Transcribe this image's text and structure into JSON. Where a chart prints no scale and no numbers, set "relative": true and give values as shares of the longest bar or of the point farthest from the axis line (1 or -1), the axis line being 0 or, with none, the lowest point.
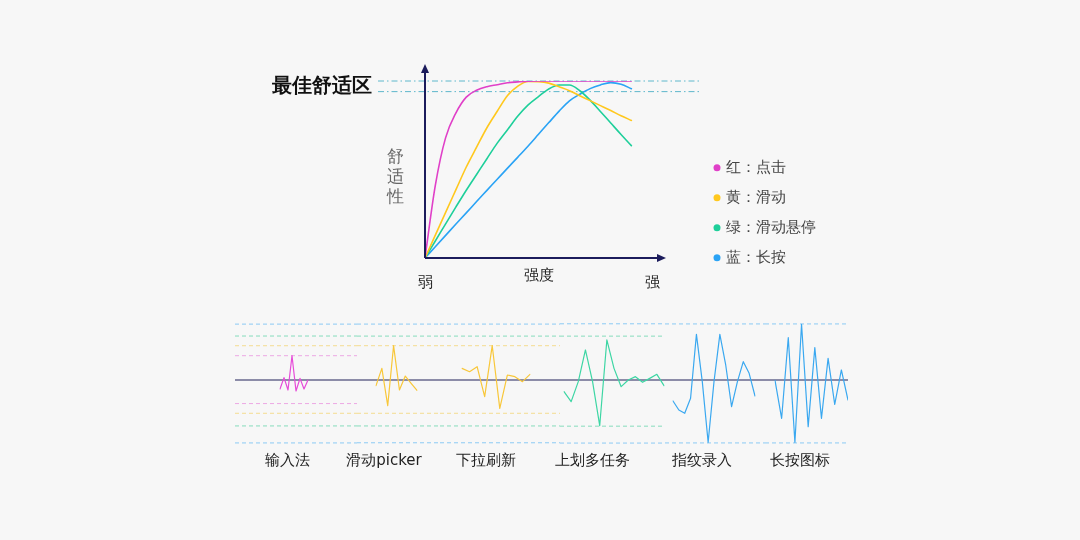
{
  "chart_data": [
    {
      "type": "line",
      "relative": true,
      "xlabel": "强度",
      "ylabel": "舒适性",
      "legend": "right",
      "categories": [
        "弱",
        null,
        null,
        null,
        null,
        null,
        null,
        null,
        null,
        null,
        null,
        null,
        null,
        null,
        null,
        null,
        null,
        null,
        null,
        null,
        null,
        null,
        "强"
      ],
      "ref_lines": [
        {
          "axis": "y",
          "value": 1,
          "label": "最佳舒适区",
          "color": "#5fb8cc"
        },
        {
          "axis": "y",
          "value": 0.94,
          "color": "#5fb8cc"
        }
      ],
      "series": [
        {
          "name": "红：点击",
          "color": "#e040c8",
          "values": [
            0,
            0.41,
            0.68,
            0.82,
            0.909,
            0.948,
            0.968,
            0.979,
            0.99,
            0.995,
            0.999,
            1,
            1,
            1,
            1,
            1,
            1,
            1,
            1,
            1,
            1,
            null,
            null
          ]
        },
        {
          "name": "黄：滑动",
          "color": "#ffc81e",
          "values": [
            0,
            0.129,
            0.258,
            0.386,
            0.514,
            0.626,
            0.736,
            0.829,
            0.918,
            0.971,
            0.997,
            0.996,
            0.988,
            0.967,
            0.945,
            0.917,
            0.889,
            0.861,
            0.833,
            0.804,
            0.777,
            null,
            null
          ]
        },
        {
          "name": "绿：滑动悬停",
          "color": "#1ecf9a",
          "values": [
            0,
            0.096,
            0.193,
            0.289,
            0.383,
            0.472,
            0.561,
            0.649,
            0.725,
            0.802,
            0.865,
            0.912,
            0.955,
            0.977,
            0.977,
            0.945,
            0.892,
            0.828,
            0.763,
            0.698,
            0.635,
            null,
            null
          ]
        },
        {
          "name": "蓝：长按",
          "color": "#2aa3f5",
          "values": [
            0,
            0.064,
            0.128,
            0.192,
            0.255,
            0.319,
            0.382,
            0.445,
            0.508,
            0.57,
            0.633,
            0.699,
            0.765,
            0.83,
            0.888,
            0.925,
            0.957,
            0.978,
            0.991,
            0.982,
            0.956,
            null,
            null
          ]
        }
      ]
    },
    {
      "type": "line",
      "relative": true,
      "xlabel": "输入法",
      "categories": [
        null,
        null,
        null,
        null,
        null,
        null,
        null,
        null
      ],
      "ref_lines": [
        {
          "axis": "y",
          "value": 2.3,
          "color": "#8ccaf4",
          "line_style": "dashed"
        },
        {
          "axis": "y",
          "value": -2.59,
          "color": "#8ccaf4",
          "line_style": "dashed"
        },
        {
          "axis": "y",
          "value": 1.81,
          "color": "#86dcbc",
          "line_style": "dashed"
        },
        {
          "axis": "y",
          "value": -1.89,
          "color": "#86dcbc",
          "line_style": "dashed"
        },
        {
          "axis": "y",
          "value": 1.41,
          "color": "#f4dc90",
          "line_style": "dashed"
        },
        {
          "axis": "y",
          "value": -1.37,
          "color": "#f4dc90",
          "line_style": "dashed"
        },
        {
          "axis": "y",
          "value": 1,
          "color": "#eca8e4",
          "line_style": "dashed"
        },
        {
          "axis": "y",
          "value": -0.97,
          "color": "#eca8e4",
          "line_style": "dashed"
        }
      ],
      "series": [
        {
          "color": "#e64bd8",
          "values": [
            -0.37,
            0.096,
            -0.412,
            1,
            -0.453,
            0.067,
            -0.37,
            0
          ]
        }
      ]
    },
    {
      "type": "line",
      "relative": true,
      "xlabel": "滑动picker",
      "categories": [
        null,
        null,
        null,
        null,
        null,
        null,
        null,
        null
      ],
      "ref_lines": [
        {
          "axis": "y",
          "value": 1.63,
          "color": "#8ccaf4",
          "line_style": "dashed"
        },
        {
          "axis": "y",
          "value": -1.83,
          "color": "#8ccaf4",
          "line_style": "dashed"
        },
        {
          "axis": "y",
          "value": 1.28,
          "color": "#86dcbc",
          "line_style": "dashed"
        },
        {
          "axis": "y",
          "value": -1.34,
          "color": "#86dcbc",
          "line_style": "dashed"
        },
        {
          "axis": "y",
          "value": 1,
          "color": "#f4dc90",
          "line_style": "dashed"
        },
        {
          "axis": "y",
          "value": -0.97,
          "color": "#f4dc90",
          "line_style": "dashed"
        }
      ],
      "series": [
        {
          "color": "#f8c73a",
          "values": [
            -0.165,
            0.339,
            -0.747,
            1,
            -0.292,
            0.116,
            -0.097,
            -0.301
          ]
        }
      ]
    },
    {
      "type": "line",
      "relative": true,
      "xlabel": "下拉刷新",
      "categories": [
        null,
        null,
        null,
        null,
        null,
        null,
        null,
        null,
        null,
        null
      ],
      "ref_lines": [
        {
          "axis": "y",
          "value": 1.63,
          "color": "#8ccaf4",
          "line_style": "dashed"
        },
        {
          "axis": "y",
          "value": -1.83,
          "color": "#8ccaf4",
          "line_style": "dashed"
        },
        {
          "axis": "y",
          "value": 1.28,
          "color": "#86dcbc",
          "line_style": "dashed"
        },
        {
          "axis": "y",
          "value": -1.34,
          "color": "#86dcbc",
          "line_style": "dashed"
        },
        {
          "axis": "y",
          "value": 1,
          "color": "#f4dc90",
          "line_style": "dashed"
        },
        {
          "axis": "y",
          "value": -0.97,
          "color": "#f4dc90",
          "line_style": "dashed"
        }
      ],
      "series": [
        {
          "color": "#f8c73a",
          "values": [
            0.339,
            0.242,
            0.389,
            -0.486,
            1,
            -0.826,
            0.145,
            0.097,
            -0.048,
            0.165
          ]
        }
      ]
    },
    {
      "type": "line",
      "relative": true,
      "xlabel": "上划多任务",
      "categories": [
        null,
        null,
        null,
        null,
        null,
        null,
        null,
        null,
        null,
        null,
        null,
        null,
        null,
        null,
        null
      ],
      "ref_lines": [
        {
          "axis": "y",
          "value": 1.23,
          "color": "#8ccaf4",
          "line_style": "dashed"
        },
        {
          "axis": "y",
          "value": -1.38,
          "color": "#8ccaf4",
          "line_style": "dashed"
        },
        {
          "axis": "y",
          "value": 0.96,
          "color": "#86dcbc",
          "line_style": "dashed"
        },
        {
          "axis": "y",
          "value": -1.01,
          "color": "#86dcbc",
          "line_style": "dashed"
        }
      ],
      "series": [
        {
          "color": "#3dd6a4",
          "values": [
            -0.255,
            -0.474,
            -0.036,
            0.657,
            -0.036,
            -1,
            0.876,
            0.255,
            -0.146,
            0,
            0.073,
            -0.051,
            0.036,
            0.124,
            -0.124
          ]
        }
      ]
    },
    {
      "type": "line",
      "relative": true,
      "xlabel": "指纹录入",
      "categories": [
        null,
        null,
        null,
        null,
        null,
        null,
        null,
        null,
        null,
        null,
        null,
        null,
        null,
        null,
        null
      ],
      "ref_lines": [
        {
          "axis": "y",
          "value": 0.9,
          "color": "#8ccaf4",
          "line_style": "dashed"
        },
        {
          "axis": "y",
          "value": -1.01,
          "color": "#8ccaf4",
          "line_style": "dashed"
        }
      ],
      "series": [
        {
          "color": "#3aa8f0",
          "values": [
            -0.337,
            -0.481,
            -0.535,
            -0.294,
            0.733,
            -0.026,
            -1,
            -0.026,
            0.733,
            0.241,
            -0.428,
            -0.026,
            0.294,
            0.107,
            -0.257
          ]
        }
      ]
    },
    {
      "type": "line",
      "relative": true,
      "xlabel": "长按图标",
      "categories": [
        null,
        null,
        null,
        null,
        null,
        null,
        null,
        null,
        null,
        null,
        null,
        null
      ],
      "ref_lines": [
        {
          "axis": "y",
          "value": 0.9,
          "color": "#8ccaf4",
          "line_style": "dashed"
        },
        {
          "axis": "y",
          "value": -1.01,
          "color": "#8ccaf4",
          "line_style": "dashed"
        }
      ],
      "series": [
        {
          "color": "#3aa8f0",
          "values": [
            -0.005,
            -0.615,
            0.679,
            -1,
            0.894,
            -0.749,
            0.519,
            -0.615,
            0.348,
            -0.39,
            0.161,
            -0.321
          ]
        }
      ]
    }
  ]
}
